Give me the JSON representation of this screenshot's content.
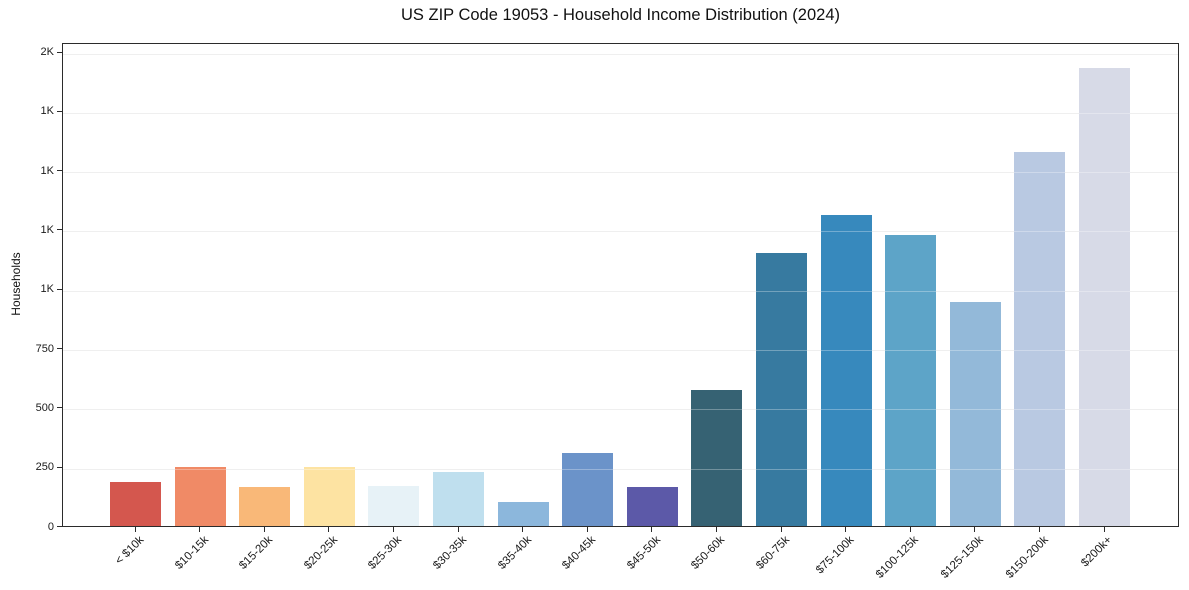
{
  "title": "US ZIP Code 19053 - Household Income Distribution (2024)",
  "chart_data": {
    "type": "bar",
    "title": "US ZIP Code 19053 - Household Income Distribution (2024)",
    "xlabel": "",
    "ylabel": "Households",
    "categories": [
      "< $10k",
      "$10-15k",
      "$15-20k",
      "$20-25k",
      "$25-30k",
      "$30-35k",
      "$35-40k",
      "$40-45k",
      "$45-50k",
      "$50-60k",
      "$60-75k",
      "$75-100k",
      "$100-125k",
      "$125-150k",
      "$150-200k",
      "$200k+"
    ],
    "values": [
      187,
      250,
      166,
      250,
      167,
      227,
      100,
      308,
      164,
      575,
      1150,
      1310,
      1225,
      945,
      1575,
      1930
    ],
    "bar_colors": [
      "#d4574e",
      "#f08a66",
      "#f9b878",
      "#fde3a2",
      "#e7f2f7",
      "#bfdfee",
      "#8cb7dc",
      "#6b93c9",
      "#5c59a8",
      "#366273",
      "#377aa0",
      "#3789bd",
      "#5da4c8",
      "#93b9d9",
      "#b9c9e2",
      "#d7dae7"
    ],
    "ylim": [
      0,
      2040
    ],
    "yticks": [
      {
        "value": 0,
        "label": "0"
      },
      {
        "value": 250,
        "label": "250"
      },
      {
        "value": 500,
        "label": "500"
      },
      {
        "value": 750,
        "label": "750"
      },
      {
        "value": 1000,
        "label": "1K"
      },
      {
        "value": 1250,
        "label": "1K"
      },
      {
        "value": 1500,
        "label": "1K"
      },
      {
        "value": 1750,
        "label": "1K"
      },
      {
        "value": 2000,
        "label": "2K"
      }
    ],
    "grid": "horizontal",
    "legend_position": "none",
    "background_color": "#ffffff",
    "axis_color": "#2b2b2b",
    "grid_color": "#e9e9e9",
    "x_tick_rotation_deg": 45
  }
}
